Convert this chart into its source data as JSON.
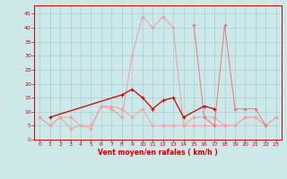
{
  "x": [
    0,
    1,
    2,
    3,
    4,
    5,
    6,
    7,
    8,
    9,
    10,
    11,
    12,
    13,
    14,
    15,
    16,
    17,
    18,
    19,
    20,
    21,
    22,
    23
  ],
  "line_rafales": [
    8,
    5,
    8,
    4,
    5,
    4,
    12,
    11,
    8,
    30,
    44,
    40,
    44,
    40,
    5,
    5,
    5,
    5,
    5,
    5,
    8,
    8,
    5,
    8
  ],
  "line_moyen": [
    8,
    5,
    8,
    8,
    5,
    5,
    12,
    12,
    11,
    8,
    11,
    5,
    5,
    5,
    5,
    8,
    8,
    8,
    5,
    5,
    8,
    8,
    5,
    8
  ],
  "line_pink2": [
    null,
    null,
    null,
    null,
    null,
    null,
    null,
    null,
    null,
    null,
    null,
    null,
    null,
    null,
    null,
    41,
    8,
    5,
    41,
    11,
    11,
    11,
    5,
    null
  ],
  "line_dark": [
    null,
    8,
    null,
    null,
    null,
    null,
    null,
    null,
    16,
    18,
    15,
    11,
    14,
    15,
    8,
    null,
    12,
    11,
    null,
    null,
    null,
    null,
    null,
    null
  ],
  "background_color": "#cce8e8",
  "grid_color": "#aacece",
  "color_light_pink": "#f0a0a0",
  "color_medium_pink": "#e87878",
  "color_dark_red": "#cc0000",
  "xlabel": "Vent moyen/en rafales ( km/h )",
  "ylabel_ticks": [
    0,
    5,
    10,
    15,
    20,
    25,
    30,
    35,
    40,
    45
  ],
  "xlim": [
    -0.5,
    23.5
  ],
  "ylim": [
    0,
    48
  ]
}
